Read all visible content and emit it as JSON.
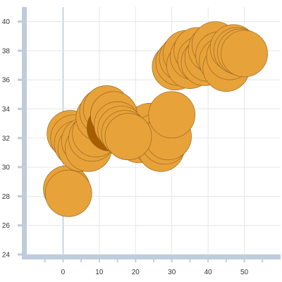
{
  "chart_data": {
    "type": "scatter",
    "title": "",
    "xlabel": "",
    "ylabel": "",
    "xlim": [
      -10,
      60
    ],
    "ylim": [
      24,
      41
    ],
    "x_ticks": [
      0,
      10,
      20,
      30,
      40,
      50
    ],
    "y_ticks": [
      24,
      26,
      28,
      30,
      32,
      34,
      36,
      38,
      40
    ],
    "grid": true,
    "legend": "none",
    "style": {
      "bubble_fill": "#E8A23A",
      "bubble_stroke": "#9A6A1F",
      "highlight_fill": "#A65E00",
      "axis_band": "#BFCCDB",
      "grid": "#E6E6E6",
      "zero_line": "#9FB3C8"
    },
    "highlight_point": {
      "x": 13,
      "y": 32.7
    },
    "points": [
      {
        "x": 1,
        "y": 28.5
      },
      {
        "x": 1.5,
        "y": 28.2
      },
      {
        "x": 2,
        "y": 32.3
      },
      {
        "x": 3,
        "y": 32.0
      },
      {
        "x": 4,
        "y": 31.6
      },
      {
        "x": 5,
        "y": 31.3
      },
      {
        "x": 6,
        "y": 31.8
      },
      {
        "x": 7,
        "y": 31.3
      },
      {
        "x": 8,
        "y": 32.0
      },
      {
        "x": 9,
        "y": 32.3
      },
      {
        "x": 10,
        "y": 33.4
      },
      {
        "x": 11,
        "y": 33.8
      },
      {
        "x": 12,
        "y": 34.0
      },
      {
        "x": 14,
        "y": 33.6
      },
      {
        "x": 15,
        "y": 32.9
      },
      {
        "x": 16,
        "y": 32.6
      },
      {
        "x": 17,
        "y": 32.3
      },
      {
        "x": 18,
        "y": 32.1
      },
      {
        "x": 19,
        "y": 32.5
      },
      {
        "x": 20,
        "y": 32.2
      },
      {
        "x": 21,
        "y": 31.9
      },
      {
        "x": 22,
        "y": 32.6
      },
      {
        "x": 23,
        "y": 32.3
      },
      {
        "x": 24,
        "y": 32.8
      },
      {
        "x": 25,
        "y": 32.0
      },
      {
        "x": 26,
        "y": 31.6
      },
      {
        "x": 27,
        "y": 31.3
      },
      {
        "x": 28,
        "y": 31.8
      },
      {
        "x": 29,
        "y": 32.1
      },
      {
        "x": 30,
        "y": 33.6
      },
      {
        "x": 31,
        "y": 36.9
      },
      {
        "x": 32,
        "y": 37.2
      },
      {
        "x": 33,
        "y": 37.5
      },
      {
        "x": 34,
        "y": 37.8
      },
      {
        "x": 35,
        "y": 37.0
      },
      {
        "x": 36,
        "y": 37.6
      },
      {
        "x": 37,
        "y": 38.0
      },
      {
        "x": 38,
        "y": 37.4
      },
      {
        "x": 39,
        "y": 37.2
      },
      {
        "x": 40,
        "y": 37.5
      },
      {
        "x": 41,
        "y": 38.1
      },
      {
        "x": 42,
        "y": 38.4
      },
      {
        "x": 43,
        "y": 37.7
      },
      {
        "x": 44,
        "y": 37.3
      },
      {
        "x": 45,
        "y": 36.8
      },
      {
        "x": 46,
        "y": 37.6
      },
      {
        "x": 47,
        "y": 38.2
      },
      {
        "x": 48,
        "y": 38.0
      },
      {
        "x": 49,
        "y": 37.9
      },
      {
        "x": 50,
        "y": 37.8
      }
    ]
  }
}
